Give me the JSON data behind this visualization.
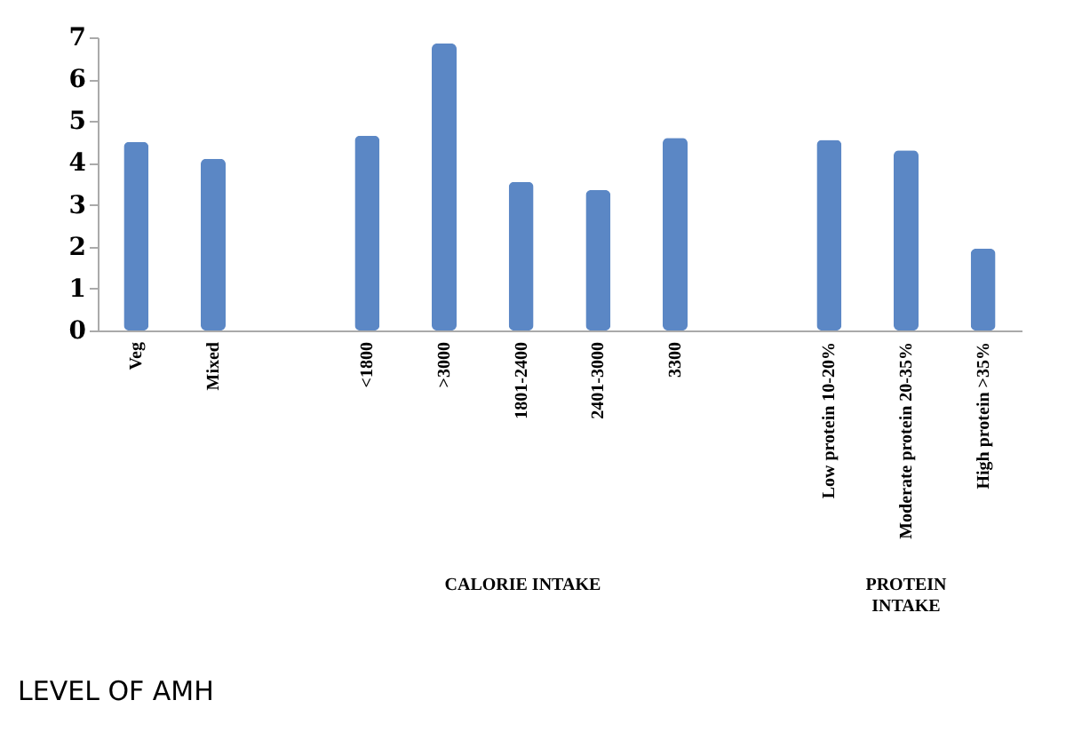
{
  "chart_data": {
    "type": "bar",
    "title": "LEVEL OF AMH",
    "categories": [
      "Veg",
      "Mixed",
      null,
      "<1800",
      ">3000",
      "1801-2400",
      "2401-3000",
      "3300",
      null,
      "Low protein 10-20%",
      "Moderate protein 20-35%",
      "High protein >35%"
    ],
    "values": [
      4.5,
      4.1,
      null,
      4.65,
      6.85,
      3.55,
      3.35,
      4.6,
      null,
      4.55,
      4.3,
      1.95
    ],
    "color": "#5b87c5",
    "ylim": [
      0,
      7
    ],
    "yticks": [
      0,
      1,
      2,
      3,
      4,
      5,
      6,
      7
    ],
    "annotations": [
      "CALORIE INTAKE",
      "PROTEIN INTAKE"
    ],
    "grid": false
  }
}
